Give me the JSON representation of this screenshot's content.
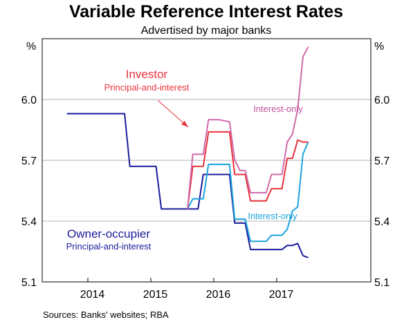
{
  "chart_data": {
    "type": "line",
    "title": "Variable Reference Interest Rates",
    "subtitle": "Advertised by major banks",
    "ylabel_left": "%",
    "ylabel_right": "%",
    "ylim": [
      5.1,
      6.3
    ],
    "yticks": [
      "6.0",
      "5.7",
      "5.4",
      "5.1"
    ],
    "xticks": [
      "2014",
      "2015",
      "2016",
      "2017"
    ],
    "grid": true,
    "source": "Sources:   Banks' websites; RBA",
    "annotations": {
      "investor": "Investor",
      "investor_sub": "Principal-and-interest",
      "interest_only_upper": "Interest-only",
      "interest_only_lower": "Interest-only",
      "owner": "Owner-occupier",
      "owner_sub": "Principal-and-interest"
    },
    "colors": {
      "owner_pi": "#1a1a9c",
      "owner_io": "#1aa3dc",
      "investor_pi": "#e8323c",
      "investor_io": "#d068a8"
    },
    "series": [
      {
        "key": "owner_pi",
        "points": [
          [
            "2013-09",
            5.93
          ],
          [
            "2014-08",
            5.93
          ],
          [
            "2014-09",
            5.67
          ],
          [
            "2014-11",
            5.67
          ],
          [
            "2015-02",
            5.67
          ],
          [
            "2015-03",
            5.46
          ],
          [
            "2015-05",
            5.46
          ],
          [
            "2015-07",
            5.46
          ],
          [
            "2015-08",
            5.46
          ],
          [
            "2015-09",
            5.46
          ],
          [
            "2015-10",
            5.46
          ],
          [
            "2015-11",
            5.63
          ],
          [
            "2016-01",
            5.63
          ],
          [
            "2016-03",
            5.63
          ],
          [
            "2016-04",
            5.63
          ],
          [
            "2016-05",
            5.39
          ],
          [
            "2016-07",
            5.39
          ],
          [
            "2016-08",
            5.26
          ],
          [
            "2016-10",
            5.26
          ],
          [
            "2017-01",
            5.26
          ],
          [
            "2017-02",
            5.26
          ],
          [
            "2017-03",
            5.28
          ],
          [
            "2017-04",
            5.28
          ],
          [
            "2017-05",
            5.29
          ],
          [
            "2017-06",
            5.23
          ],
          [
            "2017-07",
            5.22
          ]
        ]
      },
      {
        "key": "owner_io",
        "points": [
          [
            "2015-08",
            5.46
          ],
          [
            "2015-09",
            5.51
          ],
          [
            "2015-10",
            5.51
          ],
          [
            "2015-11",
            5.51
          ],
          [
            "2015-12",
            5.68
          ],
          [
            "2016-02",
            5.68
          ],
          [
            "2016-04",
            5.68
          ],
          [
            "2016-05",
            5.41
          ],
          [
            "2016-07",
            5.41
          ],
          [
            "2016-08",
            5.3
          ],
          [
            "2016-10",
            5.3
          ],
          [
            "2016-11",
            5.3
          ],
          [
            "2016-12",
            5.33
          ],
          [
            "2017-02",
            5.33
          ],
          [
            "2017-03",
            5.36
          ],
          [
            "2017-04",
            5.45
          ],
          [
            "2017-05",
            5.47
          ],
          [
            "2017-06",
            5.73
          ],
          [
            "2017-07",
            5.79
          ]
        ]
      },
      {
        "key": "investor_pi",
        "points": [
          [
            "2015-08",
            5.46
          ],
          [
            "2015-09",
            5.67
          ],
          [
            "2015-10",
            5.67
          ],
          [
            "2015-11",
            5.67
          ],
          [
            "2015-12",
            5.84
          ],
          [
            "2016-02",
            5.84
          ],
          [
            "2016-04",
            5.84
          ],
          [
            "2016-05",
            5.63
          ],
          [
            "2016-07",
            5.63
          ],
          [
            "2016-08",
            5.5
          ],
          [
            "2016-10",
            5.5
          ],
          [
            "2016-11",
            5.5
          ],
          [
            "2016-12",
            5.56
          ],
          [
            "2017-02",
            5.56
          ],
          [
            "2017-03",
            5.71
          ],
          [
            "2017-04",
            5.71
          ],
          [
            "2017-05",
            5.8
          ],
          [
            "2017-06",
            5.79
          ],
          [
            "2017-07",
            5.79
          ]
        ]
      },
      {
        "key": "investor_io",
        "points": [
          [
            "2015-08",
            5.46
          ],
          [
            "2015-09",
            5.73
          ],
          [
            "2015-10",
            5.73
          ],
          [
            "2015-11",
            5.73
          ],
          [
            "2015-12",
            5.9
          ],
          [
            "2016-02",
            5.9
          ],
          [
            "2016-04",
            5.89
          ],
          [
            "2016-05",
            5.7
          ],
          [
            "2016-06",
            5.65
          ],
          [
            "2016-07",
            5.65
          ],
          [
            "2016-08",
            5.54
          ],
          [
            "2016-10",
            5.54
          ],
          [
            "2016-11",
            5.54
          ],
          [
            "2016-12",
            5.63
          ],
          [
            "2017-02",
            5.63
          ],
          [
            "2017-03",
            5.79
          ],
          [
            "2017-04",
            5.83
          ],
          [
            "2017-05",
            5.95
          ],
          [
            "2017-06",
            6.21
          ],
          [
            "2017-07",
            6.26
          ]
        ]
      }
    ]
  }
}
